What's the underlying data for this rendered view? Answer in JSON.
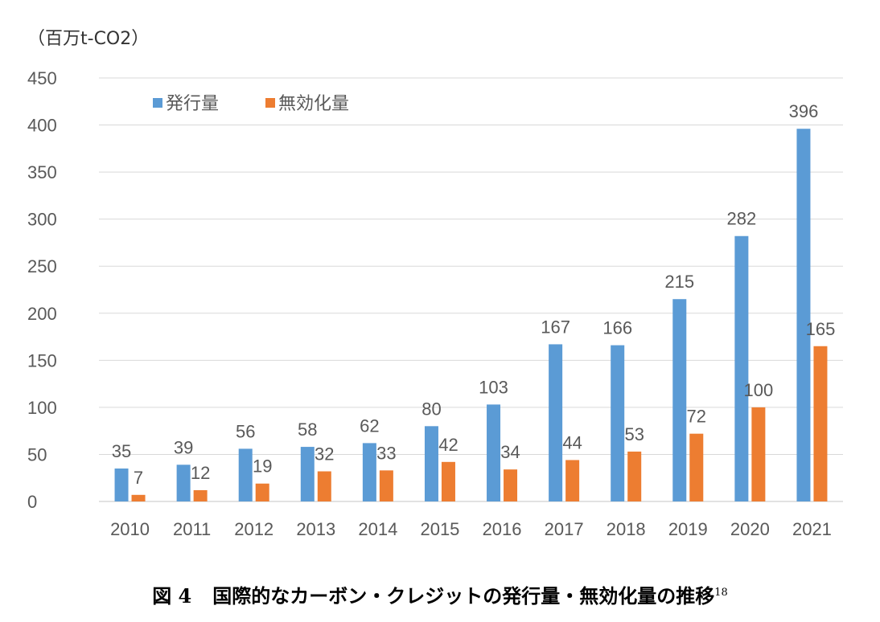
{
  "unit_label": "（百万t-CO2）",
  "caption": {
    "figure_number": "図 4",
    "title": "国際的なカーボン・クレジットの発行量・無効化量の推移",
    "footnote": "18"
  },
  "colors": {
    "issued": "#5B9BD5",
    "retired": "#ED7D31",
    "grid": "#D9D9D9",
    "axis_text": "#595959"
  },
  "chart_data": {
    "type": "bar",
    "categories": [
      "2010",
      "2011",
      "2012",
      "2013",
      "2014",
      "2015",
      "2016",
      "2017",
      "2018",
      "2019",
      "2020",
      "2021"
    ],
    "series": [
      {
        "name": "発行量",
        "values": [
          35,
          39,
          56,
          58,
          62,
          80,
          103,
          167,
          166,
          215,
          282,
          396
        ]
      },
      {
        "name": "無効化量",
        "values": [
          7,
          12,
          19,
          32,
          33,
          42,
          34,
          44,
          53,
          72,
          100,
          165
        ]
      }
    ],
    "ylim": [
      0,
      450
    ],
    "yticks": [
      0,
      50,
      100,
      150,
      200,
      250,
      300,
      350,
      400,
      450
    ],
    "ylabel": "（百万t-CO2）",
    "xlabel": "",
    "grid": true,
    "legend_position": "top-left",
    "data_labels": true
  }
}
